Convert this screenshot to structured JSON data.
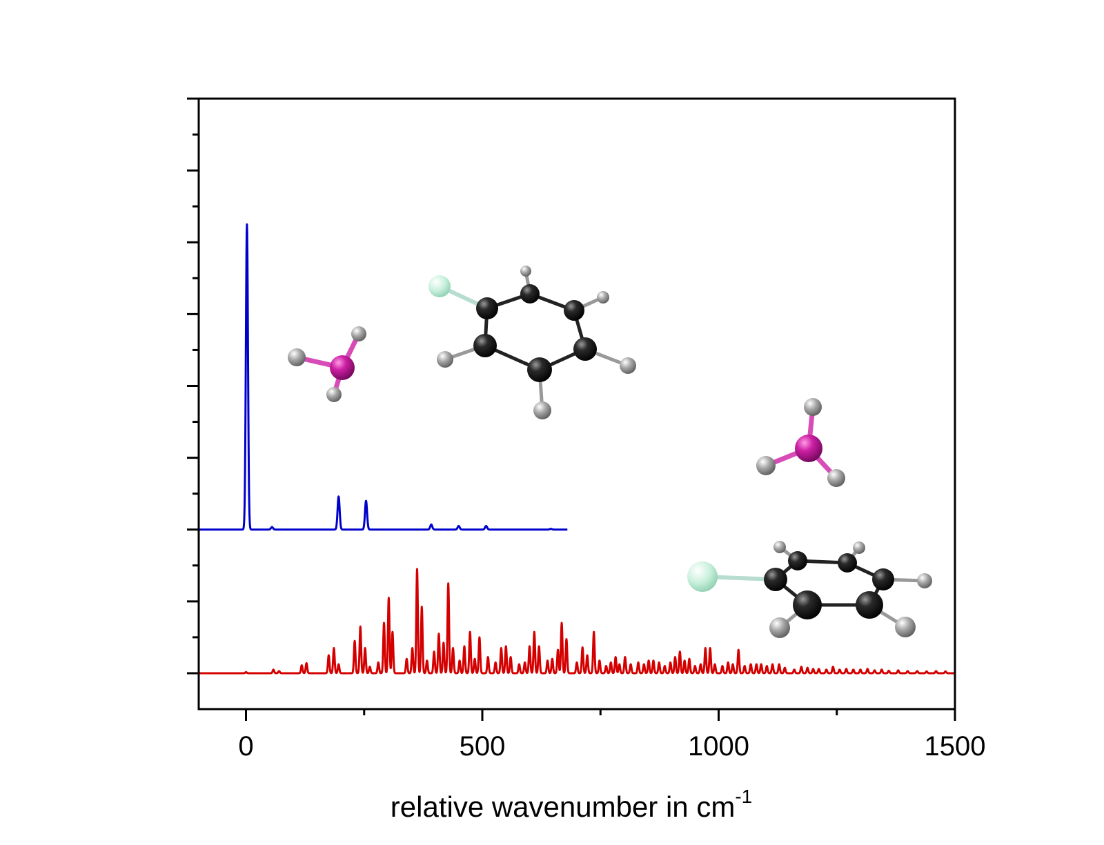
{
  "chart_data": {
    "type": "line",
    "xlabel": "relative wavenumber in cm",
    "xlabel_superscript": "-1",
    "ylabel": "",
    "xlim": [
      -100,
      1500
    ],
    "ylim": [
      -1,
      16
    ],
    "x_ticks": [
      0,
      500,
      1000,
      1500
    ],
    "x_tick_labels": [
      "0",
      "500",
      "1000",
      "1500"
    ],
    "x_minor_step": 250,
    "y_major_ticks": [
      0,
      2,
      4,
      6,
      8,
      10,
      12,
      14,
      16
    ],
    "y_minor_ticks": [
      1,
      3,
      5,
      7,
      9,
      11,
      13,
      15
    ],
    "y_tick_labels": false,
    "grid": false,
    "legend": "none",
    "series": [
      {
        "color": "#0000cc",
        "baseline": 4.0,
        "x_end": 680,
        "peak_width": 2.2,
        "peaks": [
          {
            "x": 2,
            "height": 8.5
          },
          {
            "x": 55,
            "height": 0.07
          },
          {
            "x": 196,
            "height": 0.92
          },
          {
            "x": 254,
            "height": 0.8
          },
          {
            "x": 392,
            "height": 0.14
          },
          {
            "x": 450,
            "height": 0.1
          },
          {
            "x": 508,
            "height": 0.1
          },
          {
            "x": 645,
            "height": 0.02
          }
        ]
      },
      {
        "color": "#d40000",
        "baseline": 0.0,
        "x_end": 1500,
        "peak_width": 1.6,
        "peaks": [
          {
            "x": 0,
            "height": 0.03
          },
          {
            "x": 58,
            "height": 0.1
          },
          {
            "x": 70,
            "height": 0.06
          },
          {
            "x": 118,
            "height": 0.22
          },
          {
            "x": 128,
            "height": 0.28
          },
          {
            "x": 175,
            "height": 0.5
          },
          {
            "x": 186,
            "height": 0.7
          },
          {
            "x": 196,
            "height": 0.25
          },
          {
            "x": 230,
            "height": 0.9
          },
          {
            "x": 242,
            "height": 1.3
          },
          {
            "x": 252,
            "height": 0.7
          },
          {
            "x": 262,
            "height": 0.18
          },
          {
            "x": 280,
            "height": 0.3
          },
          {
            "x": 292,
            "height": 1.4
          },
          {
            "x": 302,
            "height": 2.1
          },
          {
            "x": 310,
            "height": 1.15
          },
          {
            "x": 340,
            "height": 0.4
          },
          {
            "x": 352,
            "height": 0.7
          },
          {
            "x": 362,
            "height": 2.9
          },
          {
            "x": 372,
            "height": 1.85
          },
          {
            "x": 383,
            "height": 0.35
          },
          {
            "x": 398,
            "height": 0.6
          },
          {
            "x": 408,
            "height": 1.1
          },
          {
            "x": 418,
            "height": 0.85
          },
          {
            "x": 428,
            "height": 2.5
          },
          {
            "x": 438,
            "height": 0.7
          },
          {
            "x": 452,
            "height": 0.35
          },
          {
            "x": 462,
            "height": 0.75
          },
          {
            "x": 474,
            "height": 1.15
          },
          {
            "x": 484,
            "height": 0.4
          },
          {
            "x": 494,
            "height": 1.0
          },
          {
            "x": 512,
            "height": 0.45
          },
          {
            "x": 528,
            "height": 0.3
          },
          {
            "x": 540,
            "height": 0.7
          },
          {
            "x": 550,
            "height": 0.75
          },
          {
            "x": 560,
            "height": 0.45
          },
          {
            "x": 578,
            "height": 0.25
          },
          {
            "x": 590,
            "height": 0.3
          },
          {
            "x": 600,
            "height": 0.75
          },
          {
            "x": 610,
            "height": 1.15
          },
          {
            "x": 620,
            "height": 0.75
          },
          {
            "x": 638,
            "height": 0.35
          },
          {
            "x": 648,
            "height": 0.4
          },
          {
            "x": 660,
            "height": 0.65
          },
          {
            "x": 668,
            "height": 1.4
          },
          {
            "x": 678,
            "height": 0.95
          },
          {
            "x": 700,
            "height": 0.3
          },
          {
            "x": 712,
            "height": 0.72
          },
          {
            "x": 722,
            "height": 0.5
          },
          {
            "x": 736,
            "height": 1.15
          },
          {
            "x": 748,
            "height": 0.35
          },
          {
            "x": 762,
            "height": 0.2
          },
          {
            "x": 772,
            "height": 0.3
          },
          {
            "x": 782,
            "height": 0.45
          },
          {
            "x": 790,
            "height": 0.25
          },
          {
            "x": 802,
            "height": 0.45
          },
          {
            "x": 814,
            "height": 0.25
          },
          {
            "x": 830,
            "height": 0.3
          },
          {
            "x": 842,
            "height": 0.25
          },
          {
            "x": 852,
            "height": 0.35
          },
          {
            "x": 862,
            "height": 0.35
          },
          {
            "x": 874,
            "height": 0.3
          },
          {
            "x": 886,
            "height": 0.2
          },
          {
            "x": 898,
            "height": 0.3
          },
          {
            "x": 908,
            "height": 0.45
          },
          {
            "x": 918,
            "height": 0.6
          },
          {
            "x": 928,
            "height": 0.35
          },
          {
            "x": 938,
            "height": 0.4
          },
          {
            "x": 950,
            "height": 0.2
          },
          {
            "x": 962,
            "height": 0.25
          },
          {
            "x": 972,
            "height": 0.7
          },
          {
            "x": 982,
            "height": 0.7
          },
          {
            "x": 992,
            "height": 0.25
          },
          {
            "x": 1008,
            "height": 0.2
          },
          {
            "x": 1020,
            "height": 0.3
          },
          {
            "x": 1030,
            "height": 0.25
          },
          {
            "x": 1042,
            "height": 0.65
          },
          {
            "x": 1055,
            "height": 0.2
          },
          {
            "x": 1068,
            "height": 0.25
          },
          {
            "x": 1080,
            "height": 0.25
          },
          {
            "x": 1090,
            "height": 0.25
          },
          {
            "x": 1102,
            "height": 0.2
          },
          {
            "x": 1114,
            "height": 0.25
          },
          {
            "x": 1128,
            "height": 0.25
          },
          {
            "x": 1140,
            "height": 0.15
          },
          {
            "x": 1160,
            "height": 0.1
          },
          {
            "x": 1175,
            "height": 0.18
          },
          {
            "x": 1188,
            "height": 0.15
          },
          {
            "x": 1200,
            "height": 0.12
          },
          {
            "x": 1212,
            "height": 0.12
          },
          {
            "x": 1228,
            "height": 0.1
          },
          {
            "x": 1242,
            "height": 0.18
          },
          {
            "x": 1256,
            "height": 0.1
          },
          {
            "x": 1270,
            "height": 0.12
          },
          {
            "x": 1285,
            "height": 0.1
          },
          {
            "x": 1300,
            "height": 0.1
          },
          {
            "x": 1315,
            "height": 0.12
          },
          {
            "x": 1330,
            "height": 0.08
          },
          {
            "x": 1345,
            "height": 0.1
          },
          {
            "x": 1360,
            "height": 0.07
          },
          {
            "x": 1380,
            "height": 0.08
          },
          {
            "x": 1400,
            "height": 0.06
          },
          {
            "x": 1420,
            "height": 0.06
          },
          {
            "x": 1440,
            "height": 0.05
          },
          {
            "x": 1460,
            "height": 0.06
          },
          {
            "x": 1480,
            "height": 0.05
          }
        ]
      }
    ]
  },
  "colors": {
    "axis": "#000000",
    "carbon": "#1a1a1a",
    "hydrogen": "#9a9a9a",
    "fluorine": "#c8f0dc",
    "pnictogen": "#cc1fa3"
  },
  "inset_icons": [
    "molecule-complex-upper",
    "molecule-complex-lower"
  ]
}
